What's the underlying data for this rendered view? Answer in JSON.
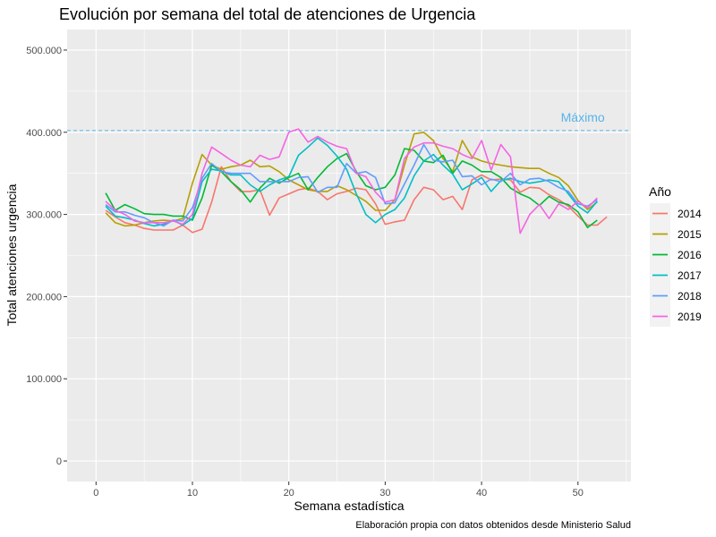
{
  "chart_data": {
    "type": "line",
    "title": "Evolución por semana del total de atenciones de Urgencia",
    "xlabel": "Semana estadística",
    "ylabel": "Total atenciones urgencia",
    "caption": "Elaboración propia con datos obtenidos desde Ministerio Salud",
    "xlim": [
      -3,
      55.5
    ],
    "ylim": [
      -25000,
      525000
    ],
    "x_ticks": [
      0,
      10,
      20,
      30,
      40,
      50
    ],
    "y_ticks": [
      {
        "value": 0,
        "label": "0"
      },
      {
        "value": 100000,
        "label": "100.000"
      },
      {
        "value": 200000,
        "label": "200.000"
      },
      {
        "value": 300000,
        "label": "300.000"
      },
      {
        "value": 400000,
        "label": "400.000"
      },
      {
        "value": 500000,
        "label": "500.000"
      }
    ],
    "grid": true,
    "panel_background": "#ebebeb",
    "legend": {
      "title": "Año",
      "position": "right"
    },
    "reference_line": {
      "y": 402000,
      "label": "Máximo",
      "color": "#56B4E9",
      "style": "dashed"
    },
    "series": [
      {
        "name": "2014",
        "color": "#F8766D",
        "x": [
          1,
          2,
          3,
          4,
          5,
          6,
          7,
          8,
          9,
          10,
          11,
          12,
          13,
          14,
          15,
          16,
          17,
          18,
          19,
          20,
          21,
          22,
          23,
          24,
          25,
          26,
          27,
          28,
          29,
          30,
          31,
          32,
          33,
          34,
          35,
          36,
          37,
          38,
          39,
          40,
          41,
          42,
          43,
          44,
          45,
          46,
          47,
          48,
          49,
          50,
          51,
          52,
          53
        ],
        "values": [
          305000,
          297000,
          290000,
          287000,
          283000,
          281000,
          281000,
          281000,
          287000,
          278000,
          282000,
          315000,
          358000,
          340000,
          328000,
          328000,
          330000,
          299000,
          320000,
          325000,
          330000,
          332000,
          328000,
          318000,
          325000,
          328000,
          332000,
          330000,
          313000,
          288000,
          291000,
          293000,
          318000,
          333000,
          330000,
          318000,
          322000,
          306000,
          342000,
          348000,
          342000,
          343000,
          342000,
          327000,
          333000,
          332000,
          324000,
          318000,
          310000,
          298000,
          287000,
          287000,
          297000
        ]
      },
      {
        "name": "2015",
        "color": "#B79F00",
        "x": [
          1,
          2,
          3,
          4,
          5,
          6,
          7,
          8,
          9,
          10,
          11,
          12,
          13,
          14,
          15,
          16,
          17,
          18,
          19,
          20,
          21,
          22,
          23,
          24,
          25,
          26,
          27,
          28,
          29,
          30,
          31,
          32,
          33,
          34,
          35,
          36,
          37,
          38,
          39,
          40,
          41,
          42,
          43,
          44,
          45,
          46,
          47,
          48,
          49,
          50,
          51,
          52
        ],
        "values": [
          302000,
          290000,
          286000,
          287000,
          290000,
          292000,
          293000,
          292000,
          295000,
          338000,
          373000,
          360000,
          355000,
          358000,
          360000,
          366000,
          358000,
          359000,
          352000,
          342000,
          336000,
          330000,
          328000,
          328000,
          335000,
          330000,
          323000,
          316000,
          305000,
          305000,
          318000,
          360000,
          398000,
          400000,
          390000,
          368000,
          352000,
          390000,
          370000,
          365000,
          362000,
          360000,
          358000,
          357000,
          356000,
          356000,
          350000,
          345000,
          335000,
          317000,
          306000,
          315000
        ]
      },
      {
        "name": "2016",
        "color": "#00BA38",
        "x": [
          1,
          2,
          3,
          4,
          5,
          6,
          7,
          8,
          9,
          10,
          11,
          12,
          13,
          14,
          15,
          16,
          17,
          18,
          19,
          20,
          21,
          22,
          23,
          24,
          25,
          26,
          27,
          28,
          29,
          30,
          31,
          32,
          33,
          34,
          35,
          36,
          37,
          38,
          39,
          40,
          41,
          42,
          43,
          44,
          45,
          46,
          47,
          48,
          49,
          50,
          51,
          52
        ],
        "values": [
          326000,
          305000,
          312000,
          307000,
          301000,
          300000,
          300000,
          298000,
          298000,
          293000,
          320000,
          360000,
          352000,
          340000,
          330000,
          315000,
          332000,
          344000,
          338000,
          345000,
          350000,
          330000,
          345000,
          358000,
          368000,
          374000,
          352000,
          335000,
          330000,
          333000,
          348000,
          380000,
          378000,
          365000,
          363000,
          372000,
          350000,
          365000,
          360000,
          352000,
          352000,
          345000,
          332000,
          325000,
          320000,
          311000,
          322000,
          315000,
          312000,
          303000,
          284000,
          293000
        ]
      },
      {
        "name": "2017",
        "color": "#00BFC4",
        "x": [
          1,
          2,
          3,
          4,
          5,
          6,
          7,
          8,
          9,
          10,
          11,
          12,
          13,
          14,
          15,
          16,
          17,
          18,
          19,
          20,
          21,
          22,
          23,
          24,
          25,
          26,
          27,
          28,
          29,
          30,
          31,
          32,
          33,
          34,
          35,
          36,
          37,
          38,
          39,
          40,
          41,
          42,
          43,
          44,
          45,
          46,
          47,
          48,
          49,
          50,
          51,
          52
        ],
        "values": [
          310000,
          298000,
          296000,
          293000,
          289000,
          286000,
          288000,
          293000,
          287000,
          295000,
          340000,
          355000,
          353000,
          348000,
          348000,
          336000,
          328000,
          336000,
          342000,
          346000,
          372000,
          382000,
          393000,
          384000,
          371000,
          355000,
          325000,
          300000,
          290000,
          300000,
          306000,
          320000,
          347000,
          365000,
          373000,
          360000,
          349000,
          330000,
          337000,
          345000,
          328000,
          341000,
          344000,
          340000,
          338000,
          340000,
          342000,
          340000,
          325000,
          310000,
          302000,
          316000
        ]
      },
      {
        "name": "2018",
        "color": "#619CFF",
        "x": [
          1,
          2,
          3,
          4,
          5,
          6,
          7,
          8,
          9,
          10,
          11,
          12,
          13,
          14,
          15,
          16,
          17,
          18,
          19,
          20,
          21,
          22,
          23,
          24,
          25,
          26,
          27,
          28,
          29,
          30,
          31,
          32,
          33,
          34,
          35,
          36,
          37,
          38,
          39,
          40,
          41,
          42,
          43,
          44,
          45,
          46,
          47,
          48,
          49,
          50,
          51,
          52
        ],
        "values": [
          312000,
          303000,
          303000,
          299000,
          296000,
          290000,
          286000,
          293000,
          292000,
          308000,
          344000,
          362000,
          352000,
          350000,
          350000,
          350000,
          340000,
          340000,
          340000,
          340000,
          345000,
          346000,
          327000,
          333000,
          333000,
          362000,
          350000,
          352000,
          345000,
          313000,
          314000,
          337000,
          360000,
          385000,
          366000,
          364000,
          366000,
          346000,
          347000,
          336000,
          343000,
          340000,
          350000,
          336000,
          343000,
          344000,
          340000,
          333000,
          328000,
          313000,
          310000,
          318000
        ]
      },
      {
        "name": "2019",
        "color": "#F564E3",
        "x": [
          1,
          2,
          3,
          4,
          5,
          6,
          7,
          8,
          9,
          10,
          11,
          12,
          13,
          14,
          15,
          16,
          17,
          18,
          19,
          20,
          21,
          22,
          23,
          24,
          25,
          26,
          27,
          28,
          29,
          30,
          31,
          32,
          33,
          34,
          35,
          36,
          37,
          38,
          39,
          40,
          41,
          42,
          43,
          44,
          45,
          46,
          47,
          48,
          49,
          50,
          51,
          52
        ],
        "values": [
          316000,
          305000,
          300000,
          292000,
          290000,
          290000,
          290000,
          292000,
          288000,
          300000,
          350000,
          382000,
          374000,
          366000,
          360000,
          358000,
          372000,
          367000,
          370000,
          400000,
          404000,
          388000,
          395000,
          388000,
          383000,
          380000,
          350000,
          346000,
          327000,
          315000,
          318000,
          368000,
          382000,
          387000,
          387000,
          383000,
          380000,
          373000,
          368000,
          390000,
          354000,
          385000,
          370000,
          277000,
          300000,
          312000,
          295000,
          313000,
          306000,
          316000,
          308000,
          320000
        ]
      }
    ]
  }
}
